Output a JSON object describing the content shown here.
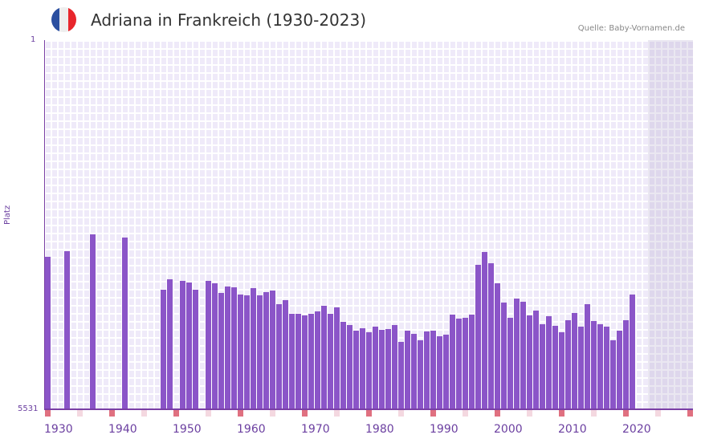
{
  "header": {
    "title": "Adriana in Frankreich (1930-2023)",
    "source": "Quelle: Baby-Vornamen.de",
    "flag_colors": [
      "#2b4fa0",
      "#eeeeee",
      "#e8262c"
    ]
  },
  "colors": {
    "bar": "#8b55c8",
    "axis": "#7a3fa5",
    "decade_tick": "#e07080",
    "minor_tick": "#f4d8e0"
  },
  "chart_data": {
    "type": "bar",
    "title": "Adriana in Frankreich (1930-2023)",
    "xlabel": "",
    "ylabel": "Platz",
    "ylim": [
      5531,
      1
    ],
    "y_inverted": true,
    "y_ticks": [
      "1",
      "5531"
    ],
    "x_ticks": [
      "1930",
      "1940",
      "1950",
      "1960",
      "1970",
      "1980",
      "1990",
      "2000",
      "2010",
      "2020"
    ],
    "x_range": [
      1930,
      2030
    ],
    "grid": true,
    "legend": null,
    "series": [
      {
        "name": "Platz",
        "data": [
          {
            "year": 1930,
            "rank": 3247
          },
          {
            "year": 1933,
            "rank": 3162
          },
          {
            "year": 1937,
            "rank": 2910
          },
          {
            "year": 1942,
            "rank": 2958
          },
          {
            "year": 1948,
            "rank": 3739
          },
          {
            "year": 1949,
            "rank": 3583
          },
          {
            "year": 1951,
            "rank": 3607
          },
          {
            "year": 1952,
            "rank": 3631
          },
          {
            "year": 1953,
            "rank": 3739
          },
          {
            "year": 1955,
            "rank": 3607
          },
          {
            "year": 1956,
            "rank": 3643
          },
          {
            "year": 1957,
            "rank": 3787
          },
          {
            "year": 1958,
            "rank": 3691
          },
          {
            "year": 1959,
            "rank": 3703
          },
          {
            "year": 1960,
            "rank": 3811
          },
          {
            "year": 1961,
            "rank": 3823
          },
          {
            "year": 1962,
            "rank": 3715
          },
          {
            "year": 1963,
            "rank": 3823
          },
          {
            "year": 1964,
            "rank": 3775
          },
          {
            "year": 1965,
            "rank": 3751
          },
          {
            "year": 1966,
            "rank": 3955
          },
          {
            "year": 1967,
            "rank": 3895
          },
          {
            "year": 1968,
            "rank": 4100
          },
          {
            "year": 1969,
            "rank": 4100
          },
          {
            "year": 1970,
            "rank": 4124
          },
          {
            "year": 1971,
            "rank": 4100
          },
          {
            "year": 1972,
            "rank": 4064
          },
          {
            "year": 1973,
            "rank": 3979
          },
          {
            "year": 1974,
            "rank": 4100
          },
          {
            "year": 1975,
            "rank": 4004
          },
          {
            "year": 1976,
            "rank": 4220
          },
          {
            "year": 1977,
            "rank": 4268
          },
          {
            "year": 1978,
            "rank": 4353
          },
          {
            "year": 1979,
            "rank": 4317
          },
          {
            "year": 1980,
            "rank": 4377
          },
          {
            "year": 1981,
            "rank": 4293
          },
          {
            "year": 1982,
            "rank": 4341
          },
          {
            "year": 1983,
            "rank": 4329
          },
          {
            "year": 1984,
            "rank": 4268
          },
          {
            "year": 1985,
            "rank": 4521
          },
          {
            "year": 1986,
            "rank": 4353
          },
          {
            "year": 1987,
            "rank": 4401
          },
          {
            "year": 1988,
            "rank": 4497
          },
          {
            "year": 1989,
            "rank": 4365
          },
          {
            "year": 1990,
            "rank": 4353
          },
          {
            "year": 1991,
            "rank": 4437
          },
          {
            "year": 1992,
            "rank": 4413
          },
          {
            "year": 1993,
            "rank": 4112
          },
          {
            "year": 1994,
            "rank": 4172
          },
          {
            "year": 1995,
            "rank": 4160
          },
          {
            "year": 1996,
            "rank": 4112
          },
          {
            "year": 1997,
            "rank": 3366
          },
          {
            "year": 1998,
            "rank": 3174
          },
          {
            "year": 1999,
            "rank": 3342
          },
          {
            "year": 2000,
            "rank": 3643
          },
          {
            "year": 2001,
            "rank": 3931
          },
          {
            "year": 2002,
            "rank": 4160
          },
          {
            "year": 2003,
            "rank": 3871
          },
          {
            "year": 2004,
            "rank": 3919
          },
          {
            "year": 2005,
            "rank": 4124
          },
          {
            "year": 2006,
            "rank": 4052
          },
          {
            "year": 2007,
            "rank": 4256
          },
          {
            "year": 2008,
            "rank": 4136
          },
          {
            "year": 2009,
            "rank": 4280
          },
          {
            "year": 2010,
            "rank": 4377
          },
          {
            "year": 2011,
            "rank": 4196
          },
          {
            "year": 2012,
            "rank": 4088
          },
          {
            "year": 2013,
            "rank": 4293
          },
          {
            "year": 2014,
            "rank": 3955
          },
          {
            "year": 2015,
            "rank": 4208
          },
          {
            "year": 2016,
            "rank": 4256
          },
          {
            "year": 2017,
            "rank": 4293
          },
          {
            "year": 2018,
            "rank": 4497
          },
          {
            "year": 2019,
            "rank": 4353
          },
          {
            "year": 2020,
            "rank": 4196
          },
          {
            "year": 2021,
            "rank": 3811
          }
        ]
      }
    ]
  }
}
